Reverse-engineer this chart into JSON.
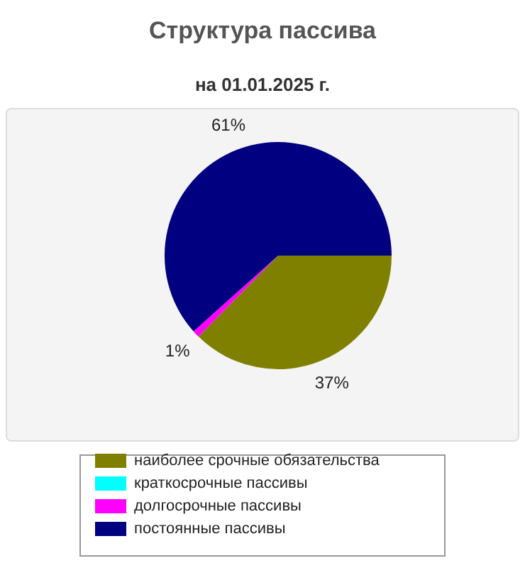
{
  "chart_data": {
    "type": "pie",
    "title": "Структура пассива",
    "subtitle": "на 01.01.2025 г.",
    "categories": [
      "наиболее срочные обязательства",
      "краткосрочные пассивы",
      "долгосрочные пассивы",
      "постоянные пассивы"
    ],
    "values": [
      37,
      0,
      1,
      61
    ],
    "colors": [
      "#808000",
      "#00ffff",
      "#ff00ff",
      "#000080"
    ],
    "value_labels": [
      "37%",
      null,
      "1%",
      "61%"
    ],
    "legend": "bottom"
  }
}
